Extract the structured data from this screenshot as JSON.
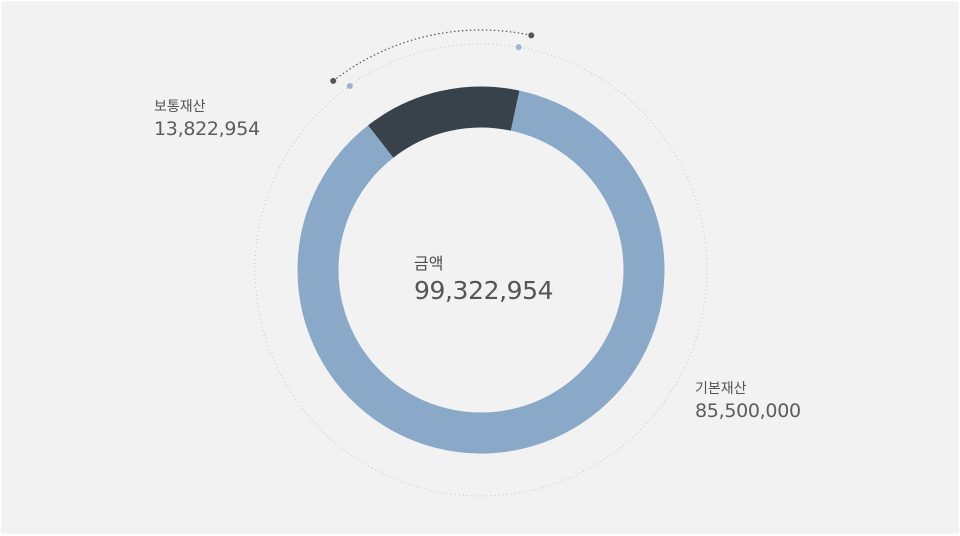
{
  "chart_data": {
    "type": "pie",
    "variant": "donut",
    "total_label": "금액",
    "total_value_text": "99,322,954",
    "total": 99322954,
    "slices": [
      {
        "label": "보통재산",
        "value_text": "13,822,954",
        "value": 13822954,
        "color": "#37424a"
      },
      {
        "label": "기본재산",
        "value_text": "85,500,000",
        "value": 85500000,
        "color": "#8aa9c9"
      }
    ],
    "dot_colors": {
      "dark": "#555555",
      "light": "#9db5d1"
    },
    "guide_ring_color": "#c4c4c4"
  }
}
